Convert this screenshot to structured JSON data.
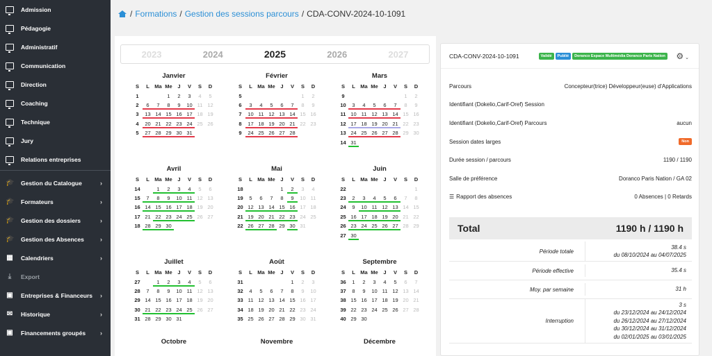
{
  "sidebar": {
    "items": [
      {
        "label": "Admission",
        "icon": "monitor-icon"
      },
      {
        "label": "Pédagogie",
        "icon": "monitor-icon"
      },
      {
        "label": "Administratif",
        "icon": "monitor-icon"
      },
      {
        "label": "Communication",
        "icon": "monitor-icon"
      },
      {
        "label": "Direction",
        "icon": "monitor-icon"
      },
      {
        "label": "Coaching",
        "icon": "monitor-icon"
      },
      {
        "label": "Technique",
        "icon": "monitor-icon"
      },
      {
        "label": "Jury",
        "icon": "monitor-icon"
      },
      {
        "label": "Relations entreprises",
        "icon": "monitor-icon"
      }
    ],
    "groups": [
      {
        "label": "Gestion du Catalogue",
        "icon": "graduation-cap-icon"
      },
      {
        "label": "Formateurs",
        "icon": "graduation-cap-icon"
      },
      {
        "label": "Gestion des dossiers",
        "icon": "graduation-cap-icon"
      },
      {
        "label": "Gestion des Absences",
        "icon": "graduation-cap-icon"
      },
      {
        "label": "Calendriers",
        "icon": "calendar-icon"
      },
      {
        "label": "Export",
        "icon": "download-icon"
      },
      {
        "label": "Entreprises & Financeurs",
        "icon": "building-icon"
      },
      {
        "label": "Historique",
        "icon": "envelope-icon"
      },
      {
        "label": "Financements groupés",
        "icon": "building-icon"
      }
    ]
  },
  "breadcrumb": {
    "home_icon": "home-icon",
    "items": [
      "Formations",
      "Gestion des sessions parcours",
      "CDA-CONV-2024-10-1091"
    ],
    "separator": "/"
  },
  "years": [
    "2023",
    "2024",
    "2025",
    "2026",
    "2027"
  ],
  "current_year": "2025",
  "weekday_headers": [
    "S",
    "L",
    "Ma",
    "Me",
    "J",
    "V",
    "S",
    "D"
  ],
  "months": [
    {
      "name": "Janvier",
      "rows": [
        {
          "w": "1",
          "d": [
            "",
            "",
            "",
            "1",
            "2",
            "3",
            "4",
            "5"
          ]
        },
        {
          "w": "2",
          "d": [
            "",
            "6",
            "7",
            "8",
            "9",
            "10",
            "11",
            "12"
          ]
        },
        {
          "w": "3",
          "d": [
            "",
            "13",
            "14",
            "15",
            "16",
            "17",
            "18",
            "19"
          ]
        },
        {
          "w": "4",
          "d": [
            "",
            "20",
            "21",
            "22",
            "23",
            "24",
            "25",
            "26"
          ]
        },
        {
          "w": "5",
          "d": [
            "",
            "27",
            "28",
            "29",
            "30",
            "31",
            "",
            ""
          ]
        }
      ]
    },
    {
      "name": "Février",
      "rows": [
        {
          "w": "5",
          "d": [
            "",
            "",
            "",
            "",
            "",
            "",
            "1",
            "2"
          ]
        },
        {
          "w": "6",
          "d": [
            "",
            "3",
            "4",
            "5",
            "6",
            "7",
            "8",
            "9"
          ]
        },
        {
          "w": "7",
          "d": [
            "",
            "10",
            "11",
            "12",
            "13",
            "14",
            "15",
            "16"
          ]
        },
        {
          "w": "8",
          "d": [
            "",
            "17",
            "18",
            "19",
            "20",
            "21",
            "22",
            "23"
          ]
        },
        {
          "w": "9",
          "d": [
            "",
            "24",
            "25",
            "26",
            "27",
            "28",
            "",
            ""
          ]
        }
      ]
    },
    {
      "name": "Mars",
      "rows": [
        {
          "w": "9",
          "d": [
            "",
            "",
            "",
            "",
            "",
            "",
            "1",
            "2"
          ]
        },
        {
          "w": "10",
          "d": [
            "",
            "3",
            "4",
            "5",
            "6",
            "7",
            "8",
            "9"
          ]
        },
        {
          "w": "11",
          "d": [
            "",
            "10",
            "11",
            "12",
            "13",
            "14",
            "15",
            "16"
          ]
        },
        {
          "w": "12",
          "d": [
            "",
            "17",
            "18",
            "19",
            "20",
            "21",
            "22",
            "23"
          ]
        },
        {
          "w": "13",
          "d": [
            "",
            "24",
            "25",
            "26",
            "27",
            "28",
            "29",
            "30"
          ]
        },
        {
          "w": "14",
          "d": [
            "",
            "31",
            "",
            "",
            "",
            "",
            "",
            ""
          ]
        }
      ]
    },
    {
      "name": "Avril",
      "rows": [
        {
          "w": "14",
          "d": [
            "",
            "",
            "1",
            "2",
            "3",
            "4",
            "5",
            "6"
          ]
        },
        {
          "w": "15",
          "d": [
            "",
            "7",
            "8",
            "9",
            "10",
            "11",
            "12",
            "13"
          ]
        },
        {
          "w": "16",
          "d": [
            "",
            "14",
            "15",
            "16",
            "17",
            "18",
            "19",
            "20"
          ]
        },
        {
          "w": "17",
          "d": [
            "",
            "21",
            "22",
            "23",
            "24",
            "25",
            "26",
            "27"
          ]
        },
        {
          "w": "18",
          "d": [
            "",
            "28",
            "29",
            "30",
            "",
            "",
            "",
            ""
          ]
        }
      ]
    },
    {
      "name": "Mai",
      "rows": [
        {
          "w": "18",
          "d": [
            "",
            "",
            "",
            "",
            "1",
            "2",
            "3",
            "4"
          ]
        },
        {
          "w": "19",
          "d": [
            "",
            "5",
            "6",
            "7",
            "8",
            "9",
            "10",
            "11"
          ]
        },
        {
          "w": "20",
          "d": [
            "",
            "12",
            "13",
            "14",
            "15",
            "16",
            "17",
            "18"
          ]
        },
        {
          "w": "21",
          "d": [
            "",
            "19",
            "20",
            "21",
            "22",
            "23",
            "24",
            "25"
          ]
        },
        {
          "w": "22",
          "d": [
            "",
            "26",
            "27",
            "28",
            "29",
            "30",
            "31",
            ""
          ]
        }
      ]
    },
    {
      "name": "Juin",
      "rows": [
        {
          "w": "22",
          "d": [
            "",
            "",
            "",
            "",
            "",
            "",
            "",
            "1"
          ]
        },
        {
          "w": "23",
          "d": [
            "",
            "2",
            "3",
            "4",
            "5",
            "6",
            "7",
            "8"
          ]
        },
        {
          "w": "24",
          "d": [
            "",
            "9",
            "10",
            "11",
            "12",
            "13",
            "14",
            "15"
          ]
        },
        {
          "w": "25",
          "d": [
            "",
            "16",
            "17",
            "18",
            "19",
            "20",
            "21",
            "22"
          ]
        },
        {
          "w": "26",
          "d": [
            "",
            "23",
            "24",
            "25",
            "26",
            "27",
            "28",
            "29"
          ]
        },
        {
          "w": "27",
          "d": [
            "",
            "30",
            "",
            "",
            "",
            "",
            "",
            ""
          ]
        }
      ]
    },
    {
      "name": "Juillet",
      "rows": [
        {
          "w": "27",
          "d": [
            "",
            "",
            "1",
            "2",
            "3",
            "4",
            "5",
            "6"
          ]
        },
        {
          "w": "28",
          "d": [
            "",
            "7",
            "8",
            "9",
            "10",
            "11",
            "12",
            "13"
          ]
        },
        {
          "w": "29",
          "d": [
            "",
            "14",
            "15",
            "16",
            "17",
            "18",
            "19",
            "20"
          ]
        },
        {
          "w": "30",
          "d": [
            "",
            "21",
            "22",
            "23",
            "24",
            "25",
            "26",
            "27"
          ]
        },
        {
          "w": "31",
          "d": [
            "",
            "28",
            "29",
            "30",
            "31",
            "",
            "",
            ""
          ]
        }
      ]
    },
    {
      "name": "Août",
      "rows": [
        {
          "w": "31",
          "d": [
            "",
            "",
            "",
            "",
            "",
            "1",
            "2",
            "3"
          ]
        },
        {
          "w": "32",
          "d": [
            "",
            "4",
            "5",
            "6",
            "7",
            "8",
            "9",
            "10"
          ]
        },
        {
          "w": "33",
          "d": [
            "",
            "11",
            "12",
            "13",
            "14",
            "15",
            "16",
            "17"
          ]
        },
        {
          "w": "34",
          "d": [
            "",
            "18",
            "19",
            "20",
            "21",
            "22",
            "23",
            "24"
          ]
        },
        {
          "w": "35",
          "d": [
            "",
            "25",
            "26",
            "27",
            "28",
            "29",
            "30",
            "31"
          ]
        }
      ]
    },
    {
      "name": "Septembre",
      "rows": [
        {
          "w": "36",
          "d": [
            "",
            "1",
            "2",
            "3",
            "4",
            "5",
            "6",
            "7"
          ]
        },
        {
          "w": "37",
          "d": [
            "",
            "8",
            "9",
            "10",
            "11",
            "12",
            "13",
            "14"
          ]
        },
        {
          "w": "38",
          "d": [
            "",
            "15",
            "16",
            "17",
            "18",
            "19",
            "20",
            "21"
          ]
        },
        {
          "w": "39",
          "d": [
            "",
            "22",
            "23",
            "24",
            "25",
            "26",
            "27",
            "28"
          ]
        },
        {
          "w": "40",
          "d": [
            "",
            "29",
            "30",
            "",
            "",
            "",
            "",
            ""
          ]
        }
      ]
    },
    {
      "name": "Octobre",
      "rows": []
    },
    {
      "name": "Novembre",
      "rows": []
    },
    {
      "name": "Décembre",
      "rows": []
    }
  ],
  "session": {
    "code": "CDA-CONV-2024-10-1091",
    "badges": [
      "Validé",
      "Publié",
      "Doranco Espace Multimédia Doranco Paris Nation"
    ],
    "fields": [
      {
        "label": "Parcours",
        "value": "Concepteur(trice) Développeur(euse) d'Applications"
      },
      {
        "label": "Identifiant (Dokelio,Carif-Oref) Session",
        "value": ""
      },
      {
        "label": "Identifiant (Dokelio,Carif-Oref) Parcours",
        "value": "aucun"
      },
      {
        "label": "Session dates larges",
        "value": "Non"
      },
      {
        "label": "Durée session / parcours",
        "value": "1190 / 1190"
      },
      {
        "label": "Salle de préférence",
        "value": "Doranco Paris Nation / GA 02"
      },
      {
        "label": "Rapport des absences",
        "value": "0 Absences | 0 Retards"
      }
    ],
    "total_label": "Total",
    "total_value": "1190 h / 1190 h",
    "stats": [
      {
        "label": "Période totale",
        "lines": [
          "38.4 s",
          "du 08/10/2024 au 04/07/2025"
        ]
      },
      {
        "label": "Période effective",
        "lines": [
          "35.4 s"
        ]
      },
      {
        "label": "Moy. par semaine",
        "lines": [
          "31 h"
        ]
      },
      {
        "label": "Interruption",
        "lines": [
          "3 s",
          "du 23/12/2024 au 24/12/2024",
          "du 26/12/2024 au 27/12/2024",
          "du 30/12/2024 au 31/12/2024",
          "du 02/01/2025 au 03/01/2025"
        ]
      }
    ]
  },
  "colors": {
    "accent": "#2b8fd6",
    "green": "#21c030",
    "red": "#e33a4a",
    "purple": "#a9a8e6",
    "sidebar": "#2a2f36"
  }
}
